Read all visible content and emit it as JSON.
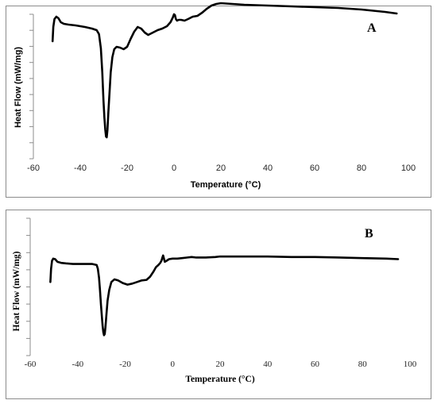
{
  "chart_data": [
    {
      "type": "line",
      "panel_label": "A",
      "xlabel": "Temperature (°C)",
      "ylabel": "Heat Flow (mW/mg)",
      "xlim": [
        -60,
        100
      ],
      "x_ticks": [
        "-60",
        "-40",
        "-20",
        "0",
        "20",
        "40",
        "60",
        "80",
        "100"
      ],
      "y_ticks_labeled": false,
      "grid": false,
      "legend": "none",
      "series": [
        {
          "x": [
            -51.8,
            -51.5,
            -51.0,
            -50.2,
            -49.3,
            -48.3,
            -47.0,
            -45.0,
            -42.0,
            -38.0,
            -35.0,
            -33.0,
            -32.0,
            -31.2,
            -30.6,
            -30.1,
            -29.7,
            -29.3,
            -29.0,
            -28.7,
            -28.4,
            -28.0,
            -27.5,
            -27.0,
            -26.3,
            -25.5,
            -24.5,
            -23.0,
            -21.5,
            -20.0,
            -18.5,
            -17.0,
            -15.5,
            -14.0,
            -12.5,
            -11.0,
            -9.0,
            -7.0,
            -5.0,
            -3.0,
            -1.5,
            -0.5,
            0.0,
            0.4,
            0.8,
            1.3,
            2.0,
            3.0,
            4.5,
            6.0,
            8.0,
            10.0,
            12.0,
            14.0,
            16.0,
            18.0,
            20.0,
            25.0,
            30.0,
            40.0,
            50.0,
            60.0,
            70.0,
            80.0,
            90.0,
            95.0
          ],
          "y": [
            0.34,
            0.52,
            0.62,
            0.65,
            0.63,
            0.58,
            0.56,
            0.55,
            0.54,
            0.52,
            0.5,
            0.48,
            0.43,
            0.25,
            -0.05,
            -0.4,
            -0.62,
            -0.78,
            -0.86,
            -0.87,
            -0.78,
            -0.55,
            -0.3,
            -0.05,
            0.14,
            0.24,
            0.27,
            0.26,
            0.24,
            0.27,
            0.37,
            0.46,
            0.52,
            0.5,
            0.45,
            0.42,
            0.45,
            0.48,
            0.5,
            0.53,
            0.58,
            0.64,
            0.68,
            0.67,
            0.62,
            0.6,
            0.61,
            0.61,
            0.6,
            0.62,
            0.65,
            0.66,
            0.7,
            0.75,
            0.79,
            0.81,
            0.82,
            0.81,
            0.8,
            0.79,
            0.78,
            0.77,
            0.76,
            0.74,
            0.71,
            0.69
          ]
        }
      ]
    },
    {
      "type": "line",
      "panel_label": "B",
      "xlabel": "Temperature (°C)",
      "ylabel": "Heat Flow (mW/mg)",
      "xlim": [
        -60,
        100
      ],
      "x_ticks": [
        "-60",
        "-40",
        "-20",
        "0",
        "20",
        "40",
        "60",
        "80",
        "100"
      ],
      "y_ticks_labeled": false,
      "grid": false,
      "legend": "none",
      "series": [
        {
          "x": [
            -51.5,
            -51.2,
            -50.8,
            -50.3,
            -49.5,
            -48.5,
            -47.0,
            -45.0,
            -42.0,
            -38.0,
            -34.0,
            -32.0,
            -31.5,
            -31.0,
            -30.6,
            -30.2,
            -29.8,
            -29.5,
            -29.2,
            -28.9,
            -28.6,
            -28.3,
            -27.9,
            -27.4,
            -26.7,
            -25.8,
            -24.5,
            -23.0,
            -21.0,
            -19.0,
            -17.0,
            -15.0,
            -13.0,
            -11.0,
            -9.5,
            -8.0,
            -7.0,
            -6.0,
            -5.2,
            -4.7,
            -4.3,
            -4.0,
            -3.7,
            -3.3,
            -2.5,
            -1.5,
            0.0,
            2.0,
            4.0,
            6.0,
            8.0,
            10.0,
            14.0,
            18.0,
            20.0,
            30.0,
            40.0,
            50.0,
            60.0,
            70.0,
            80.0,
            90.0,
            95.0
          ],
          "y": [
            0.1,
            0.35,
            0.5,
            0.54,
            0.53,
            0.48,
            0.46,
            0.45,
            0.44,
            0.44,
            0.44,
            0.42,
            0.35,
            0.18,
            -0.05,
            -0.32,
            -0.55,
            -0.72,
            -0.84,
            -0.9,
            -0.88,
            -0.75,
            -0.52,
            -0.25,
            -0.05,
            0.1,
            0.15,
            0.13,
            0.08,
            0.05,
            0.07,
            0.1,
            0.13,
            0.14,
            0.2,
            0.3,
            0.38,
            0.42,
            0.46,
            0.5,
            0.56,
            0.6,
            0.55,
            0.48,
            0.5,
            0.53,
            0.54,
            0.54,
            0.55,
            0.56,
            0.57,
            0.56,
            0.56,
            0.57,
            0.58,
            0.58,
            0.58,
            0.57,
            0.57,
            0.56,
            0.55,
            0.54,
            0.53
          ]
        }
      ]
    }
  ]
}
